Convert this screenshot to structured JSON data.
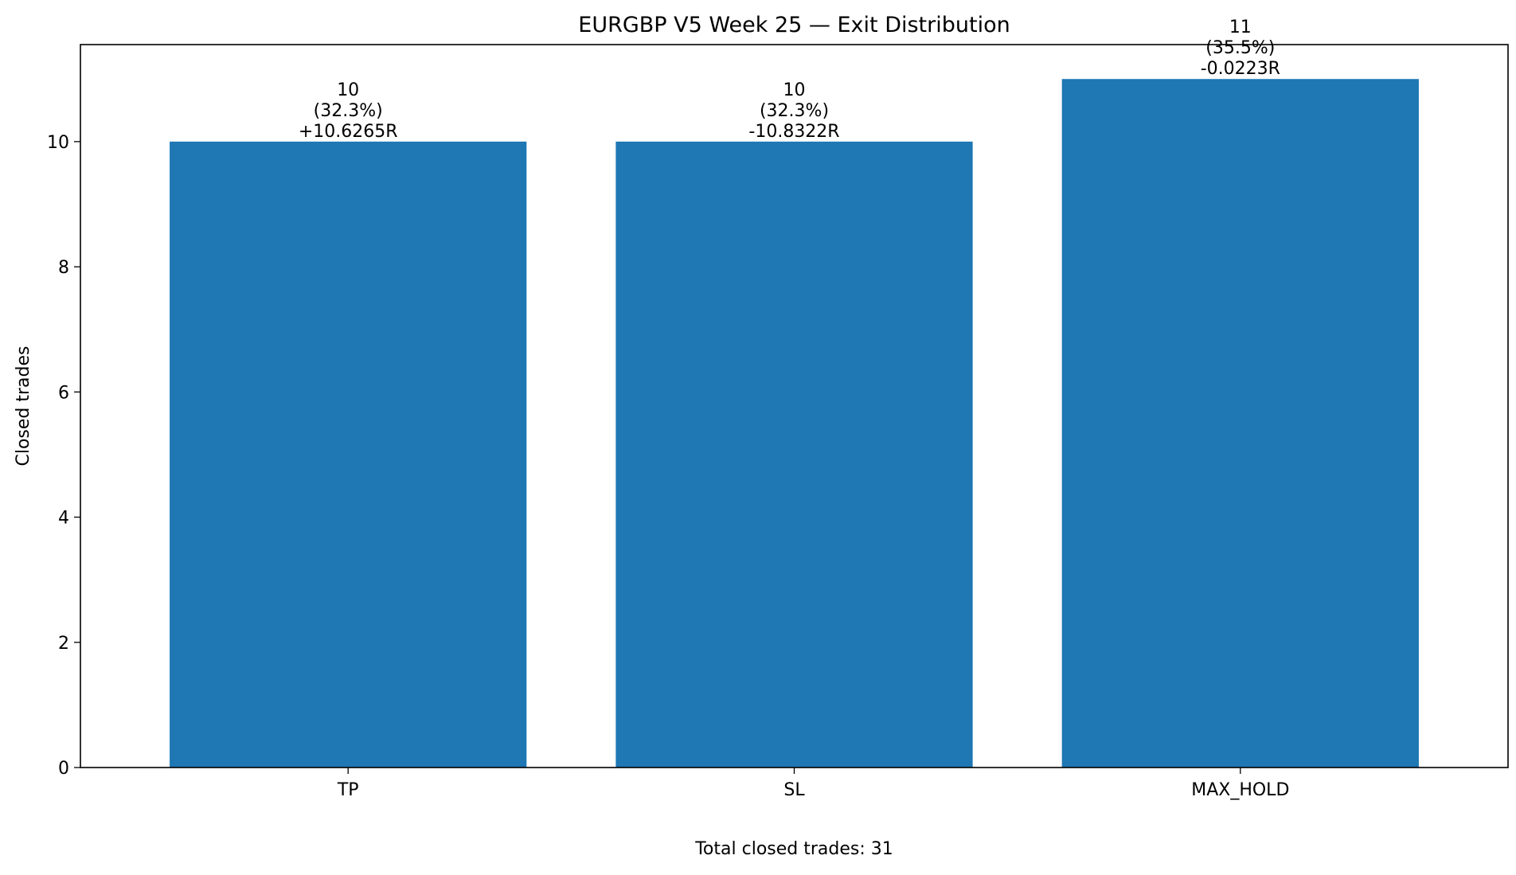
{
  "chart_data": {
    "type": "bar",
    "title": "EURGBP V5 Week 25 — Exit Distribution",
    "xlabel": "",
    "ylabel": "Closed trades",
    "categories": [
      "TP",
      "SL",
      "MAX_HOLD"
    ],
    "values": [
      10,
      10,
      11
    ],
    "bar_labels": [
      [
        "10",
        "(32.3%)",
        "+10.6265R"
      ],
      [
        "10",
        "(32.3%)",
        "-10.8322R"
      ],
      [
        "11",
        "(35.5%)",
        "-0.0223R"
      ]
    ],
    "ylim": [
      0,
      11.55
    ],
    "yticks": [
      0,
      2,
      4,
      6,
      8,
      10
    ],
    "grid": false,
    "legend": "none",
    "bar_color": "#1f77b4",
    "footer": "Total closed trades: 31"
  }
}
